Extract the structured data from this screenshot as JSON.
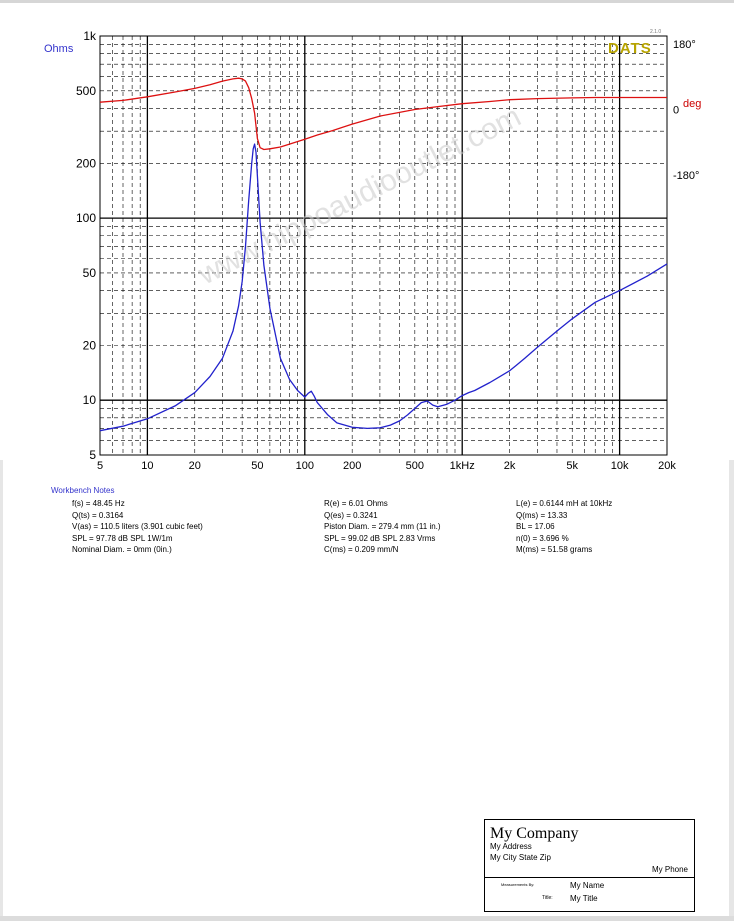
{
  "colors": {
    "impedance": "#2222cc",
    "phase": "#dd1111",
    "logo": "#b8a400",
    "notes_title": "#3333cc"
  },
  "chart_data": {
    "type": "line",
    "x_scale": "log",
    "y_scale": "log",
    "grid": true,
    "xlim": [
      5,
      20000
    ],
    "ylim": [
      5,
      1000
    ],
    "y_unit_label": "Ohms",
    "y2lim": [
      -180,
      180
    ],
    "y2_unit_label": "deg",
    "y2_ticks": [
      {
        "value": 180,
        "label": "180°"
      },
      {
        "value": 0,
        "label": "0"
      },
      {
        "value": -180,
        "label": "-180°"
      }
    ],
    "x_tick_labels": [
      {
        "value": 5,
        "label": "5"
      },
      {
        "value": 10,
        "label": "10"
      },
      {
        "value": 20,
        "label": "20"
      },
      {
        "value": 50,
        "label": "50"
      },
      {
        "value": 100,
        "label": "100"
      },
      {
        "value": 200,
        "label": "200"
      },
      {
        "value": 500,
        "label": "500"
      },
      {
        "value": 1000,
        "label": "1kHz"
      },
      {
        "value": 2000,
        "label": "2k"
      },
      {
        "value": 5000,
        "label": "5k"
      },
      {
        "value": 10000,
        "label": "10k"
      },
      {
        "value": 20000,
        "label": "20k"
      }
    ],
    "y_tick_labels": [
      {
        "value": 1000,
        "label": "1k"
      },
      {
        "value": 500,
        "label": "500"
      },
      {
        "value": 200,
        "label": "200"
      },
      {
        "value": 100,
        "label": "100"
      },
      {
        "value": 50,
        "label": "50"
      },
      {
        "value": 20,
        "label": "20"
      },
      {
        "value": 10,
        "label": "10"
      },
      {
        "value": 5,
        "label": "5"
      }
    ],
    "series": [
      {
        "axis": "left",
        "x": [
          5,
          7,
          10,
          15,
          20,
          25,
          30,
          35,
          38,
          40,
          42,
          44,
          46,
          47,
          48,
          49,
          50,
          52,
          55,
          60,
          70,
          80,
          90,
          100,
          105,
          110,
          115,
          120,
          140,
          160,
          200,
          250,
          300,
          350,
          400,
          450,
          500,
          550,
          600,
          650,
          700,
          800,
          900,
          1000,
          1100,
          1200,
          1500,
          2000,
          2200,
          2500,
          3000,
          4000,
          5000,
          7000,
          10000,
          15000,
          20000
        ],
        "y": [
          6.8,
          7.2,
          7.9,
          9.3,
          11,
          13.5,
          17,
          24,
          33,
          45,
          70,
          125,
          200,
          240,
          255,
          230,
          170,
          95,
          55,
          32,
          17,
          13,
          11.3,
          10.4,
          10.9,
          11.2,
          10.5,
          9.7,
          8.3,
          7.5,
          7.1,
          7.0,
          7.05,
          7.3,
          7.7,
          8.3,
          9.0,
          9.7,
          9.9,
          9.4,
          9.2,
          9.5,
          10.0,
          10.6,
          11.0,
          11.3,
          12.5,
          14.5,
          15.5,
          17,
          19.5,
          24,
          28,
          34.5,
          40,
          48,
          56
        ]
      },
      {
        "axis": "right",
        "x": [
          5,
          7,
          10,
          15,
          20,
          25,
          30,
          35,
          38,
          40,
          42,
          44,
          46,
          48,
          50,
          52,
          55,
          60,
          70,
          80,
          100,
          120,
          150,
          200,
          300,
          500,
          700,
          1000,
          1500,
          2000,
          3000,
          5000,
          7000,
          10000,
          15000,
          20000
        ],
        "y": [
          20,
          25,
          35,
          48,
          58,
          68,
          78,
          84,
          86,
          84,
          78,
          60,
          30,
          -10,
          -80,
          -105,
          -110,
          -108,
          -103,
          -95,
          -82,
          -70,
          -58,
          -40,
          -18,
          0,
          8,
          16,
          22,
          27,
          30,
          32,
          33,
          33,
          33,
          33
        ]
      }
    ]
  },
  "logo": {
    "text": "DATS",
    "version": "2.1.0"
  },
  "watermark": "www.hippoaudiooutlet.com",
  "notes": {
    "title": "Workbench Notes",
    "col1": [
      "f(s) = 48.45 Hz",
      "Q(ts) = 0.3164",
      "V(as) = 110.5 liters  (3.901 cubic feet)",
      "SPL = 97.78 dB SPL 1W/1m",
      "Nominal Diam. = 0mm (0in.)"
    ],
    "col2": [
      "R(e) = 6.01 Ohms",
      "Q(es) = 0.3241",
      "Piston Diam. = 279.4 mm (11 in.)",
      "SPL = 99.02 dB SPL 2.83 Vrms",
      "C(ms) = 0.209 mm/N"
    ],
    "col3": [
      "L(e) = 0.6144 mH at 10kHz",
      "Q(ms) = 13.33",
      "BL = 17.06",
      "n(0) = 3.696 %",
      "M(ms) = 51.58 grams"
    ]
  },
  "title_block": {
    "company": "My Company",
    "address": "My Address",
    "city": "My City State Zip",
    "phone": "My Phone",
    "label_name": "Measurements By:",
    "name": "My Name",
    "label_title": "Title:",
    "title": "My Title"
  }
}
